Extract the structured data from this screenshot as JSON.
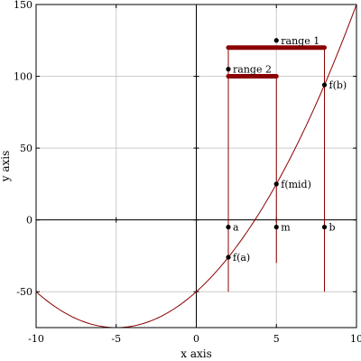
{
  "chart_data": {
    "type": "line",
    "title": "",
    "xlabel": "x axis",
    "ylabel": "y axis",
    "xlim": [
      -10,
      10
    ],
    "ylim": [
      -75,
      150
    ],
    "grid": true,
    "x_ticks": [
      -10,
      -5,
      0,
      5,
      10
    ],
    "y_ticks": [
      -50,
      0,
      50,
      100,
      150
    ],
    "x_tick_labels": [
      "-10",
      "-5",
      "0",
      "5",
      "10"
    ],
    "y_tick_labels": [
      "-50",
      "0",
      "50",
      "100",
      "150"
    ],
    "series": [
      {
        "function": "(x + 5)^2 - 75",
        "x_range": [
          -10,
          10
        ],
        "color": "#8b0000"
      }
    ],
    "colors": {
      "curve": "#8b0000",
      "ranges": "#8b0000",
      "vertical_lines": "#8b0000",
      "grid": "#cccccc",
      "points": "#000000"
    },
    "ranges": [
      {
        "label": "range 1",
        "x_start": 2,
        "x_end": 8,
        "y": 120,
        "label_point": [
          5,
          125
        ]
      },
      {
        "label": "range 2",
        "x_start": 2,
        "x_end": 5,
        "y": 100,
        "label_point": [
          2,
          105
        ]
      }
    ],
    "vertical_lines": [
      {
        "x": 2,
        "y_start": -50,
        "y_end": 120
      },
      {
        "x": 5,
        "y_start": -30,
        "y_end": 100
      },
      {
        "x": 8,
        "y_start": -50,
        "y_end": 120
      }
    ],
    "points": [
      {
        "label": "a",
        "x": 2,
        "y": -5
      },
      {
        "label": "m",
        "x": 5,
        "y": -5
      },
      {
        "label": "b",
        "x": 8,
        "y": -5
      },
      {
        "label": "f(a)",
        "x": 2,
        "y": -26
      },
      {
        "label": "f(mid)",
        "x": 5,
        "y": 25
      },
      {
        "label": "f(b)",
        "x": 8,
        "y": 94
      }
    ]
  }
}
